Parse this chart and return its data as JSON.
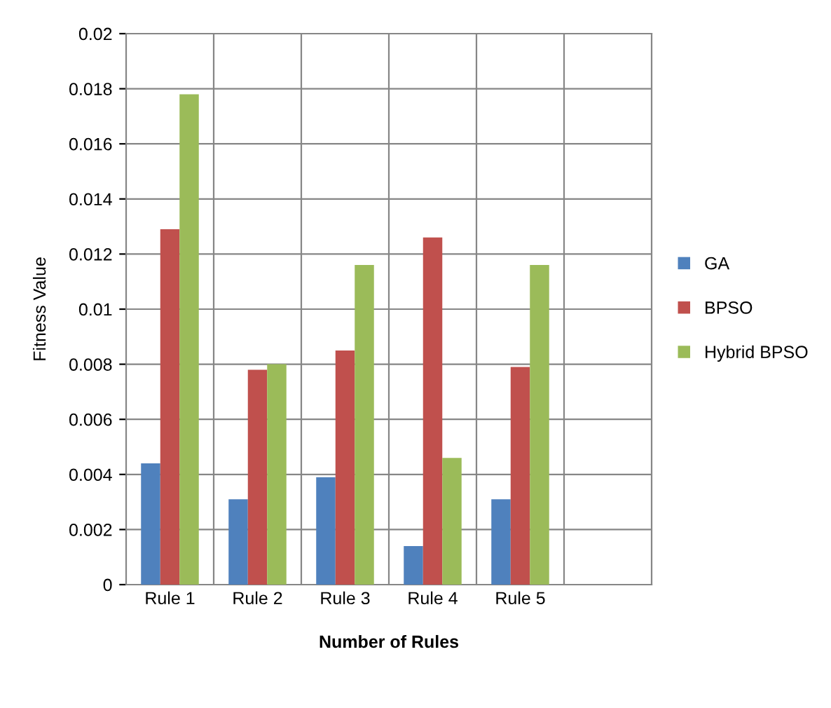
{
  "chart_data": {
    "type": "bar",
    "xlabel": "Number of Rules",
    "ylabel": "Fitness Value",
    "categories": [
      "Rule 1",
      "Rule 2",
      "Rule 3",
      "Rule 4",
      "Rule 5",
      null
    ],
    "series": [
      {
        "name": "GA",
        "color": "#4f81bd",
        "values": [
          0.0044,
          0.0031,
          0.0039,
          0.0014,
          0.0031,
          null
        ]
      },
      {
        "name": "BPSO",
        "color": "#c0504d",
        "values": [
          0.0129,
          0.0078,
          0.0085,
          0.0126,
          0.0079,
          null
        ]
      },
      {
        "name": "Hybrid BPSO",
        "color": "#9bbb59",
        "values": [
          0.0178,
          0.008,
          0.0116,
          0.0046,
          0.0116,
          null
        ]
      }
    ],
    "ylim": [
      0,
      0.02
    ],
    "yticks": [
      0,
      0.002,
      0.004,
      0.006,
      0.008,
      0.01,
      0.012,
      0.014,
      0.016,
      0.018,
      0.02
    ],
    "grid": true,
    "legend": "right"
  }
}
